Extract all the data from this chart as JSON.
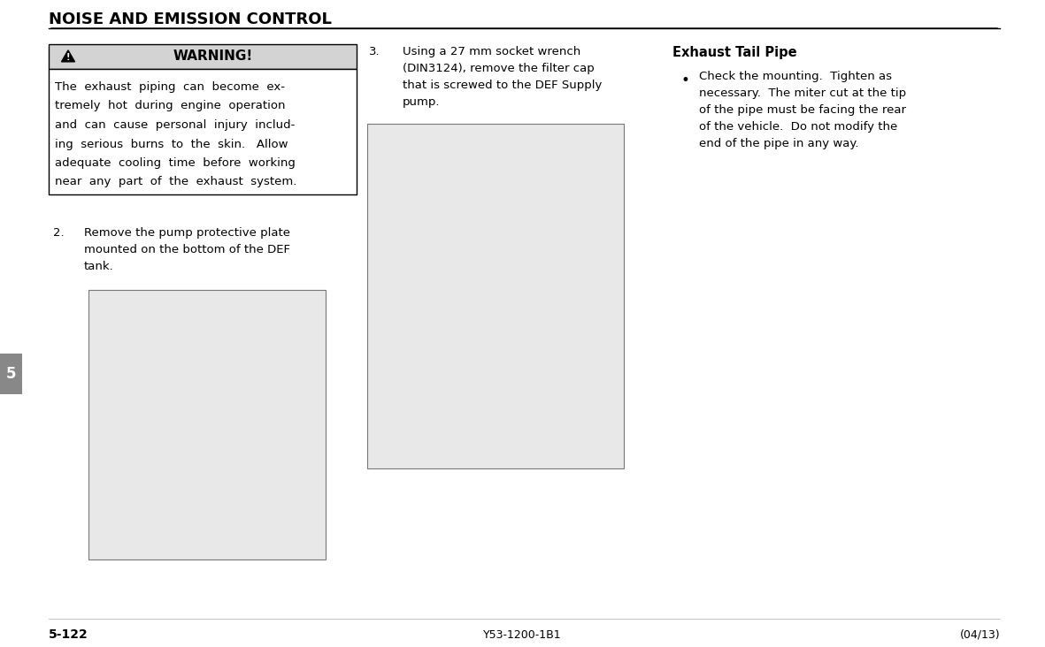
{
  "page_title": "NOISE AND EMISSION CONTROL",
  "page_number_left": "5-122",
  "page_number_center": "Y53-1200-1B1",
  "page_number_right": "(04/13)",
  "warning_header": "WARNING!",
  "warning_body_lines": [
    "The  exhaust  piping  can  become  ex-",
    "tremely  hot  during  engine  operation",
    "and  can  cause  personal  injury  includ-",
    "ing  serious  burns  to  the  skin.   Allow",
    "adequate  cooling  time  before  working",
    "near  any  part  of  the  exhaust  system."
  ],
  "step2_lines": [
    "Remove the pump protective plate",
    "mounted on the bottom of the DEF",
    "tank."
  ],
  "step3_lines": [
    "Using a 27 mm socket wrench",
    "(DIN3124), remove the filter cap",
    "that is screwed to the DEF Supply",
    "pump."
  ],
  "right_heading": "Exhaust Tail Pipe",
  "right_bullet_lines": [
    "Check the mounting.  Tighten as",
    "necessary.  The miter cut at the tip",
    "of the pipe must be facing the rear",
    "of the vehicle.  Do not modify the",
    "end of the pipe in any way."
  ],
  "tab_label": "5",
  "warning_header_bg": "#d3d3d3",
  "warning_border_color": "#000000",
  "bg_color": "#ffffff",
  "text_color": "#000000",
  "title_font_size": 13,
  "body_font_size": 9.5,
  "warn_body_font_size": 9.5,
  "step_num_font_size": 9.5,
  "footer_font_size": 9,
  "image_bg": "#e8e8e8"
}
